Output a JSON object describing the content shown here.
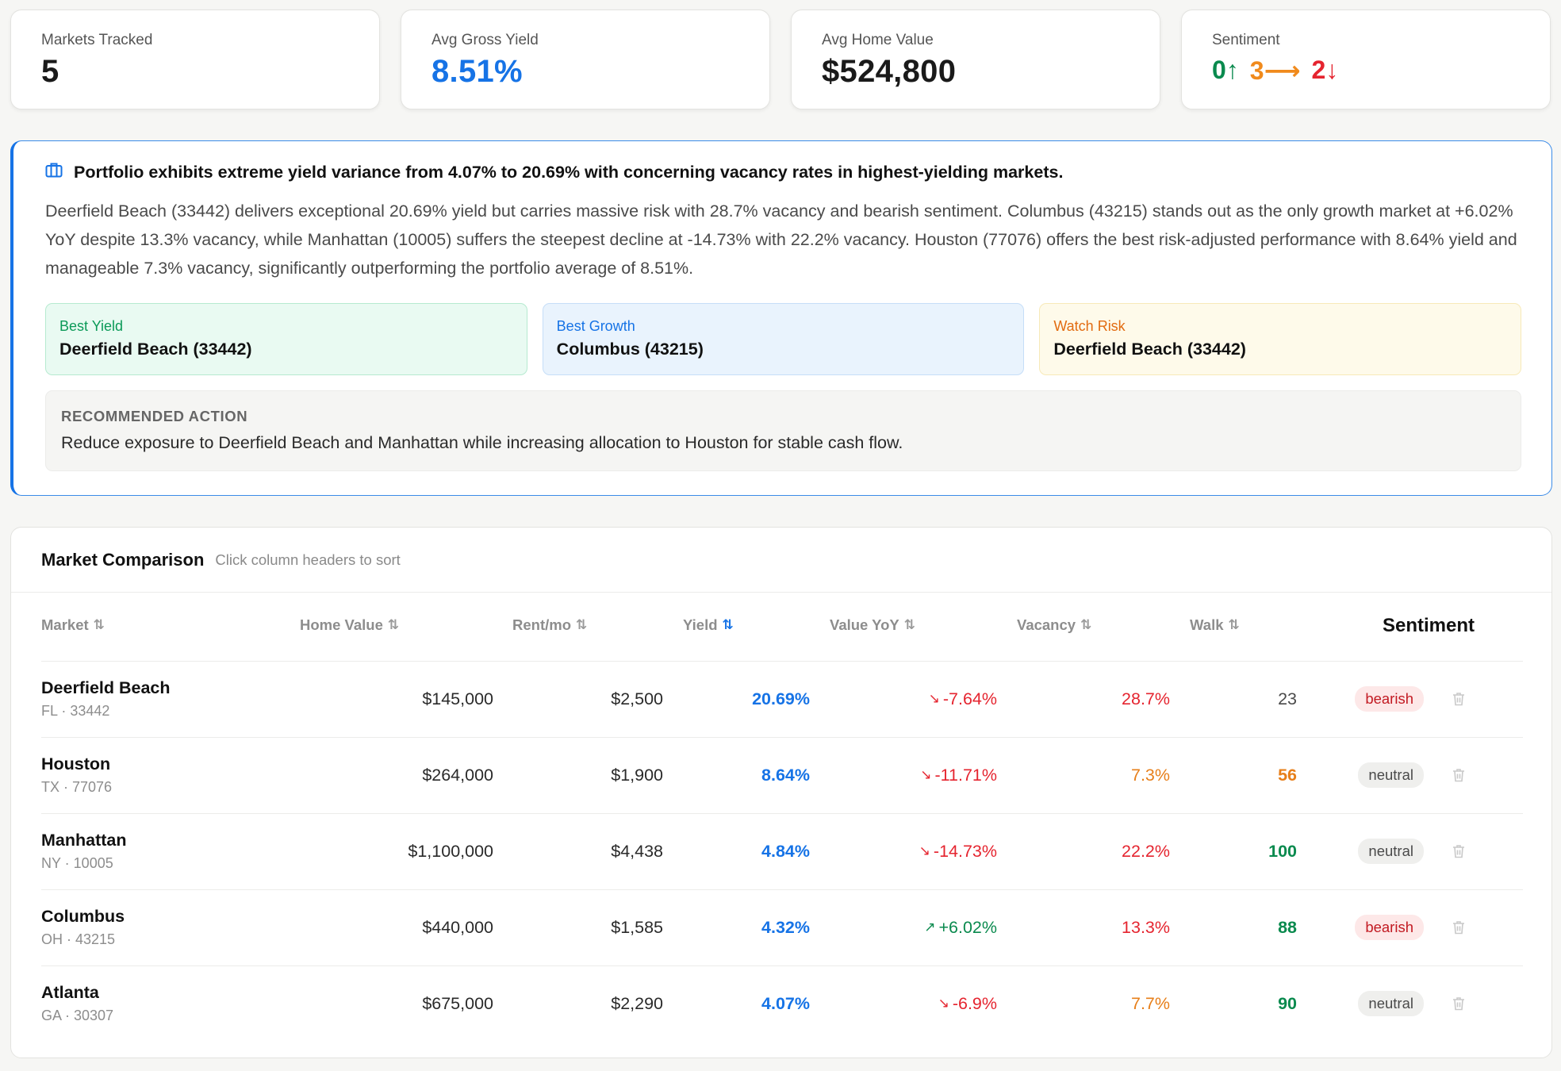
{
  "stats": [
    {
      "label": "Markets Tracked",
      "value": "5"
    },
    {
      "label": "Avg Gross Yield",
      "value": "8.51%"
    },
    {
      "label": "Avg Home Value",
      "value": "$524,800"
    },
    {
      "label": "Sentiment",
      "up": "0↑",
      "flat": "3⟶",
      "down": "2↓"
    }
  ],
  "insight": {
    "headline": "Portfolio exhibits extreme yield variance from 4.07% to 20.69% with concerning vacancy rates in highest-yielding markets.",
    "body": "Deerfield Beach (33442) delivers exceptional 20.69% yield but carries massive risk with 28.7% vacancy and bearish sentiment. Columbus (43215) stands out as the only growth market at +6.02% YoY despite 13.3% vacancy, while Manhattan (10005) suffers the steepest decline at -14.73% with 22.2% vacancy. Houston (77076) offers the best risk-adjusted performance with 8.64% yield and manageable 7.3% vacancy, significantly outperforming the portfolio average of 8.51%.",
    "chips": [
      {
        "label": "Best Yield",
        "value": "Deerfield Beach (33442)"
      },
      {
        "label": "Best Growth",
        "value": "Columbus (43215)"
      },
      {
        "label": "Watch Risk",
        "value": "Deerfield Beach (33442)"
      }
    ],
    "recommendation": {
      "label": "RECOMMENDED ACTION",
      "text": "Reduce exposure to Deerfield Beach and Manhattan while increasing allocation to Houston for stable cash flow."
    }
  },
  "table": {
    "title": "Market Comparison",
    "subtitle": "Click column headers to sort",
    "sort_icon": "⇅",
    "columns": [
      "Market",
      "Home Value",
      "Rent/mo",
      "Yield",
      "Value YoY",
      "Vacancy",
      "Walk",
      "Sentiment"
    ],
    "rows": [
      {
        "name": "Deerfield Beach",
        "sub": "FL · 33442",
        "home_value": "$145,000",
        "rent": "$2,500",
        "yield": "20.69%",
        "yoy": "-7.64%",
        "yoy_icon": "↘",
        "vacancy": "28.7%",
        "walk": "23",
        "sentiment": "bearish"
      },
      {
        "name": "Houston",
        "sub": "TX · 77076",
        "home_value": "$264,000",
        "rent": "$1,900",
        "yield": "8.64%",
        "yoy": "-11.71%",
        "yoy_icon": "↘",
        "vacancy": "7.3%",
        "walk": "56",
        "sentiment": "neutral"
      },
      {
        "name": "Manhattan",
        "sub": "NY · 10005",
        "home_value": "$1,100,000",
        "rent": "$4,438",
        "yield": "4.84%",
        "yoy": "-14.73%",
        "yoy_icon": "↘",
        "vacancy": "22.2%",
        "walk": "100",
        "sentiment": "neutral"
      },
      {
        "name": "Columbus",
        "sub": "OH · 43215",
        "home_value": "$440,000",
        "rent": "$1,585",
        "yield": "4.32%",
        "yoy": "+6.02%",
        "yoy_icon": "↗",
        "vacancy": "13.3%",
        "walk": "88",
        "sentiment": "bearish"
      },
      {
        "name": "Atlanta",
        "sub": "GA · 30307",
        "home_value": "$675,000",
        "rent": "$2,290",
        "yield": "4.07%",
        "yoy": "-6.9%",
        "yoy_icon": "↘",
        "vacancy": "7.7%",
        "walk": "90",
        "sentiment": "neutral"
      }
    ]
  }
}
